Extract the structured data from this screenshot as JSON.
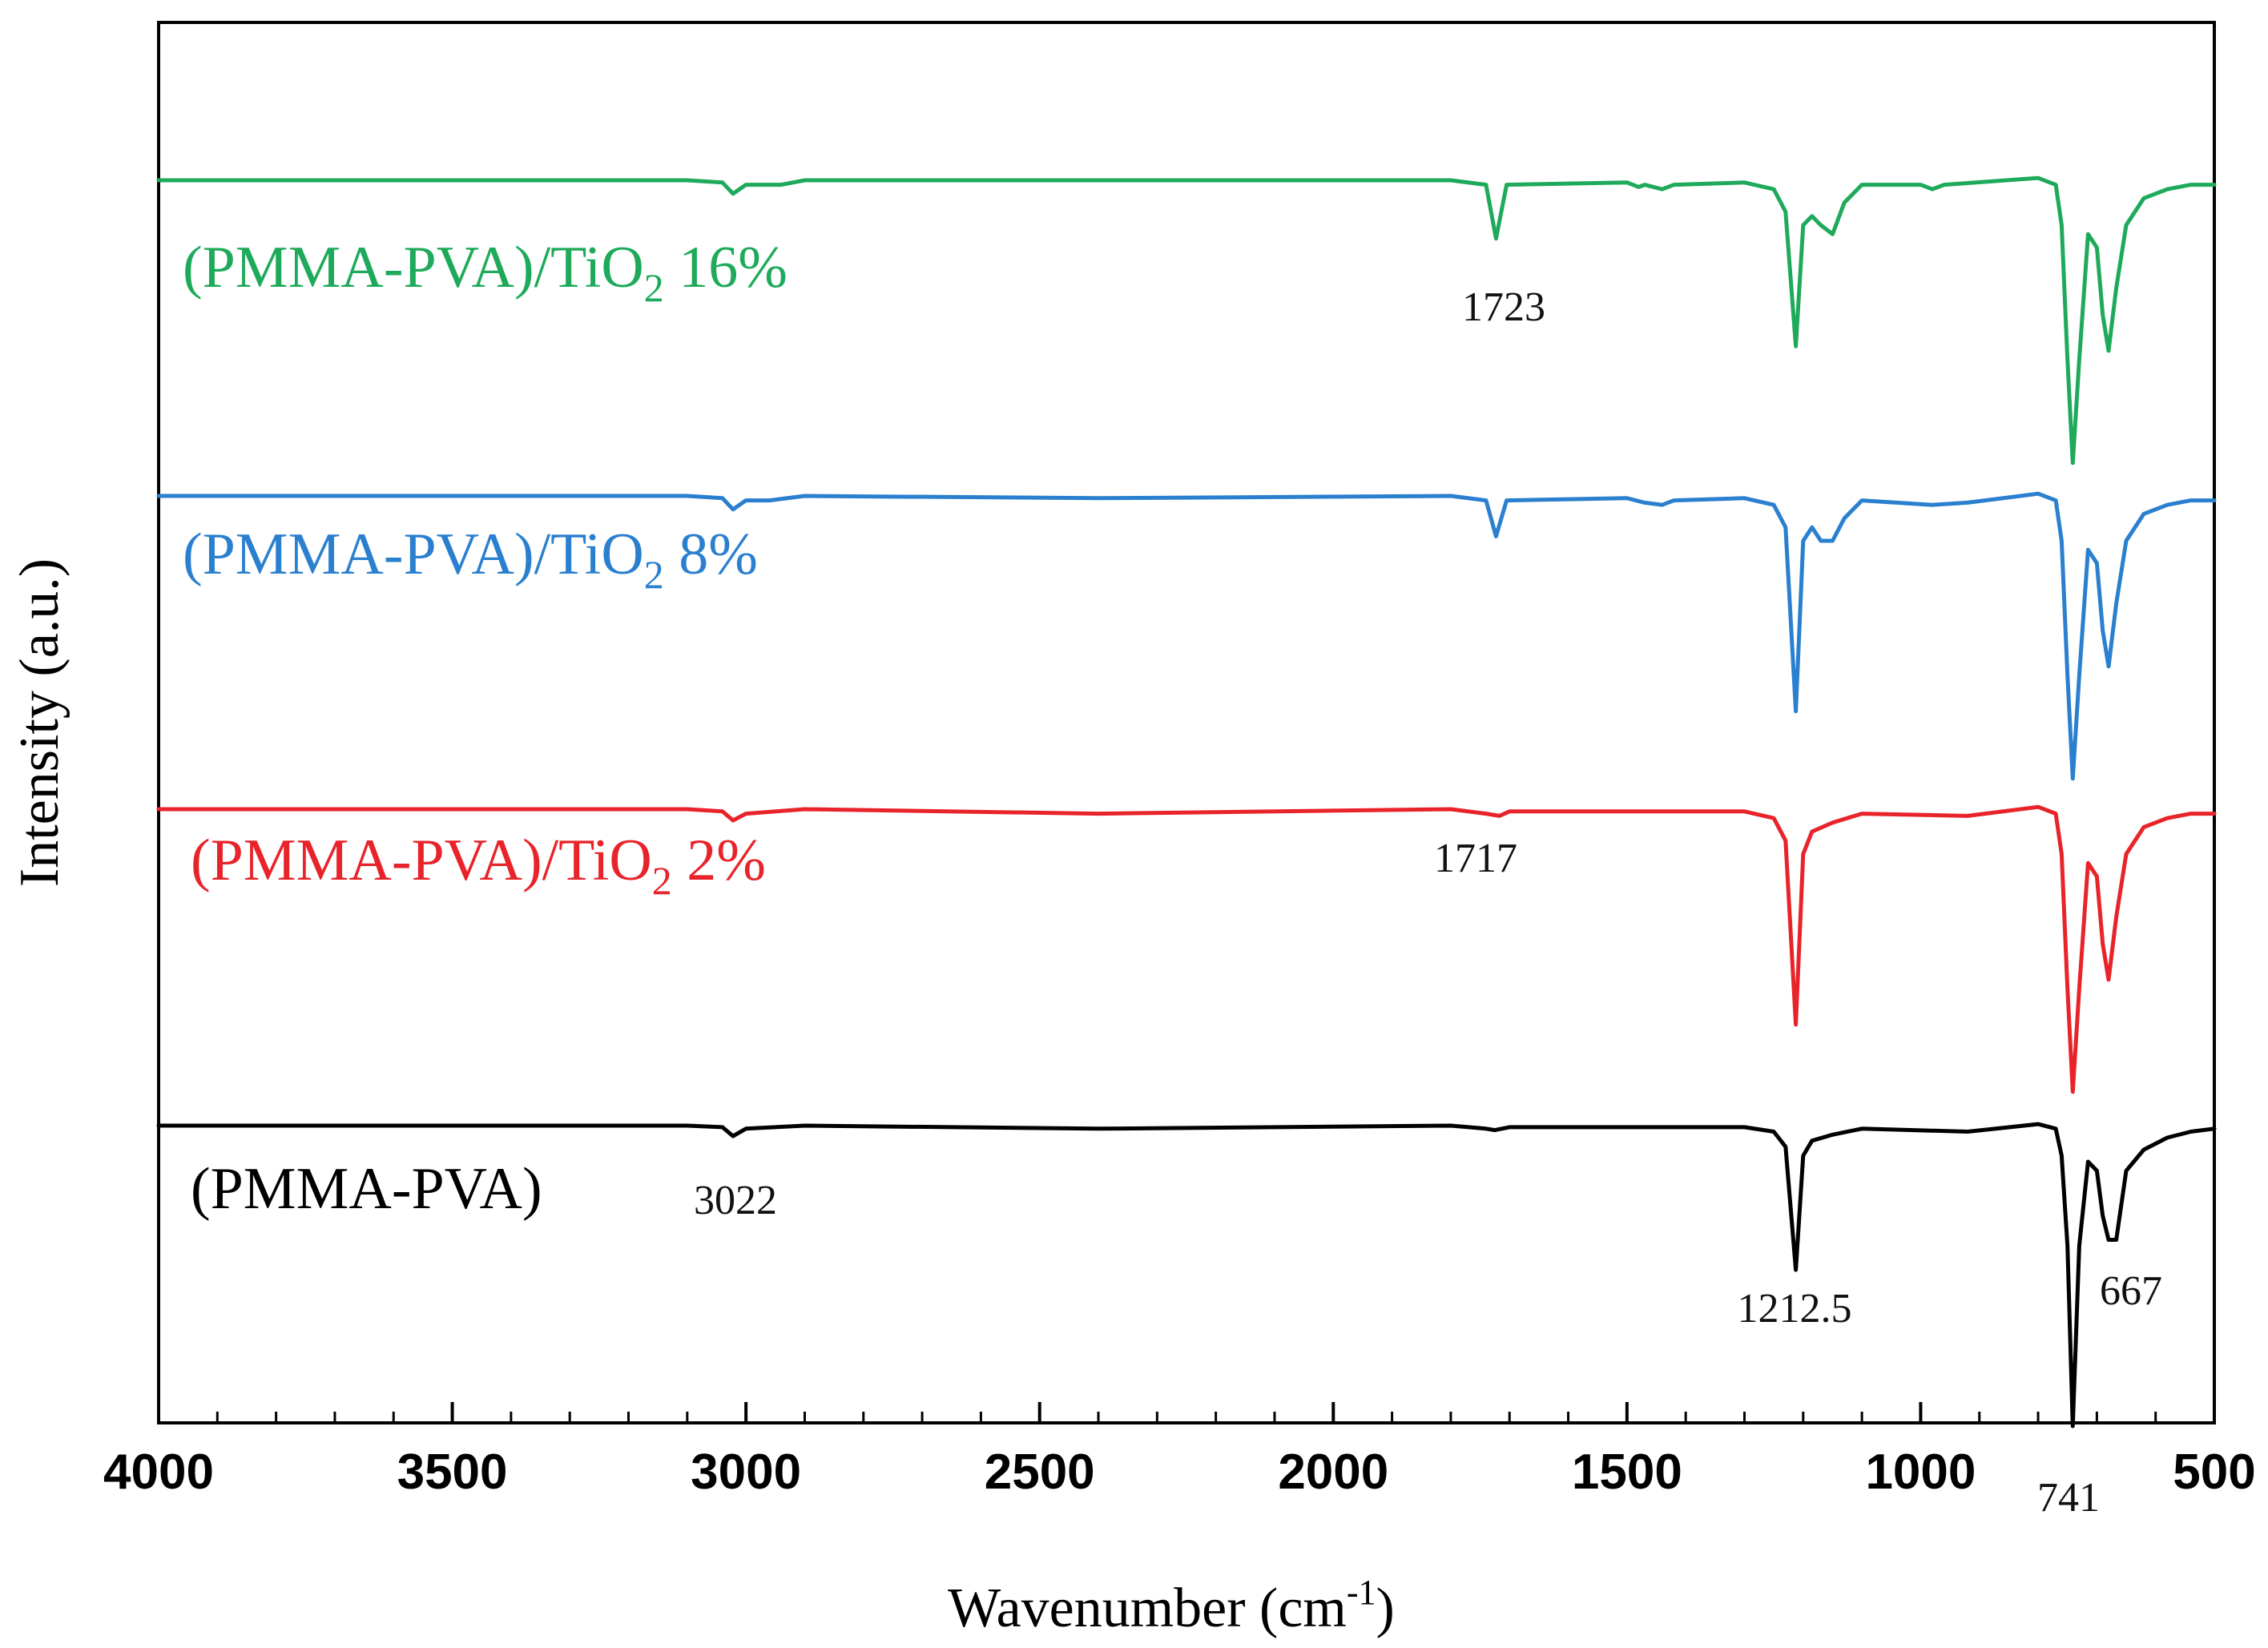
{
  "chart_data": {
    "type": "line",
    "title": "",
    "xlabel": "Wavenumber (cm",
    "xlabel_sup": "-1",
    "xlabel_close": ")",
    "ylabel": "Intensity (a.u.)",
    "xlim": [
      4000,
      500
    ],
    "x_reversed": true,
    "grid": false,
    "x_ticks": [
      4000,
      3500,
      3000,
      2500,
      2000,
      1500,
      1000,
      500
    ],
    "x_tick_labels": [
      "4000",
      "3500",
      "3000",
      "2500",
      "2000",
      "1500",
      "1000",
      "500"
    ],
    "series": [
      {
        "name": "(PMMA-PVA)/TiO2 16%",
        "label_prefix": "(PMMA-PVA)/TiO",
        "label_sub": "2",
        "label_suffix": "16%",
        "color": "#1eaa5a",
        "baseline": 1.0,
        "points": [
          [
            4000,
            1.0
          ],
          [
            3100,
            1.0
          ],
          [
            3040,
            0.995
          ],
          [
            3022,
            0.97
          ],
          [
            3000,
            0.99
          ],
          [
            2960,
            0.99
          ],
          [
            2940,
            0.99
          ],
          [
            2900,
            1.0
          ],
          [
            1800,
            1.0
          ],
          [
            1740,
            0.99
          ],
          [
            1723,
            0.87
          ],
          [
            1705,
            0.99
          ],
          [
            1500,
            0.995
          ],
          [
            1480,
            0.985
          ],
          [
            1470,
            0.99
          ],
          [
            1440,
            0.98
          ],
          [
            1420,
            0.99
          ],
          [
            1300,
            0.995
          ],
          [
            1250,
            0.98
          ],
          [
            1230,
            0.93
          ],
          [
            1212.5,
            0.63
          ],
          [
            1200,
            0.9
          ],
          [
            1185,
            0.92
          ],
          [
            1170,
            0.9
          ],
          [
            1150,
            0.88
          ],
          [
            1130,
            0.95
          ],
          [
            1100,
            0.99
          ],
          [
            1000,
            0.99
          ],
          [
            980,
            0.98
          ],
          [
            960,
            0.99
          ],
          [
            800,
            1.005
          ],
          [
            770,
            0.99
          ],
          [
            760,
            0.9
          ],
          [
            750,
            0.6
          ],
          [
            741,
            0.37
          ],
          [
            730,
            0.6
          ],
          [
            715,
            0.88
          ],
          [
            700,
            0.85
          ],
          [
            690,
            0.7
          ],
          [
            680,
            0.62
          ],
          [
            667,
            0.76
          ],
          [
            650,
            0.9
          ],
          [
            620,
            0.96
          ],
          [
            580,
            0.98
          ],
          [
            540,
            0.99
          ],
          [
            500,
            0.99
          ]
        ]
      },
      {
        "name": "(PMMA-PVA)/TiO2 8%",
        "label_prefix": "(PMMA-PVA)/TiO",
        "label_sub": "2",
        "label_suffix": "8%",
        "color": "#2a7fcf",
        "baseline": 0.0,
        "points": [
          [
            4000,
            1.0
          ],
          [
            3100,
            1.0
          ],
          [
            3040,
            0.995
          ],
          [
            3022,
            0.97
          ],
          [
            3000,
            0.99
          ],
          [
            2960,
            0.99
          ],
          [
            2900,
            1.0
          ],
          [
            2400,
            0.995
          ],
          [
            1800,
            1.0
          ],
          [
            1740,
            0.99
          ],
          [
            1723,
            0.91
          ],
          [
            1705,
            0.99
          ],
          [
            1500,
            0.995
          ],
          [
            1470,
            0.985
          ],
          [
            1440,
            0.98
          ],
          [
            1420,
            0.99
          ],
          [
            1300,
            0.995
          ],
          [
            1250,
            0.98
          ],
          [
            1230,
            0.93
          ],
          [
            1212.5,
            0.52
          ],
          [
            1200,
            0.9
          ],
          [
            1185,
            0.93
          ],
          [
            1170,
            0.9
          ],
          [
            1150,
            0.9
          ],
          [
            1130,
            0.95
          ],
          [
            1100,
            0.99
          ],
          [
            980,
            0.98
          ],
          [
            920,
            0.985
          ],
          [
            800,
            1.005
          ],
          [
            770,
            0.99
          ],
          [
            760,
            0.9
          ],
          [
            750,
            0.6
          ],
          [
            741,
            0.37
          ],
          [
            730,
            0.6
          ],
          [
            715,
            0.88
          ],
          [
            700,
            0.85
          ],
          [
            690,
            0.7
          ],
          [
            680,
            0.62
          ],
          [
            667,
            0.76
          ],
          [
            650,
            0.9
          ],
          [
            620,
            0.96
          ],
          [
            580,
            0.98
          ],
          [
            540,
            0.99
          ],
          [
            500,
            0.99
          ]
        ]
      },
      {
        "name": "(PMMA-PVA)/TiO2 2%",
        "label_prefix": "(PMMA-PVA)/TiO",
        "label_sub": "2",
        "label_suffix": "2%",
        "color": "#e8232a",
        "baseline": 0.0,
        "points": [
          [
            4000,
            1.0
          ],
          [
            3100,
            1.0
          ],
          [
            3040,
            0.995
          ],
          [
            3022,
            0.975
          ],
          [
            3000,
            0.99
          ],
          [
            2900,
            1.0
          ],
          [
            2400,
            0.99
          ],
          [
            1800,
            1.0
          ],
          [
            1740,
            0.99
          ],
          [
            1717,
            0.985
          ],
          [
            1700,
            0.995
          ],
          [
            1300,
            0.995
          ],
          [
            1250,
            0.98
          ],
          [
            1230,
            0.93
          ],
          [
            1212.5,
            0.52
          ],
          [
            1200,
            0.9
          ],
          [
            1185,
            0.95
          ],
          [
            1150,
            0.97
          ],
          [
            1100,
            0.99
          ],
          [
            920,
            0.985
          ],
          [
            800,
            1.005
          ],
          [
            770,
            0.99
          ],
          [
            760,
            0.9
          ],
          [
            750,
            0.6
          ],
          [
            741,
            0.37
          ],
          [
            730,
            0.6
          ],
          [
            715,
            0.88
          ],
          [
            700,
            0.85
          ],
          [
            690,
            0.7
          ],
          [
            680,
            0.62
          ],
          [
            667,
            0.76
          ],
          [
            650,
            0.9
          ],
          [
            620,
            0.96
          ],
          [
            580,
            0.98
          ],
          [
            540,
            0.99
          ],
          [
            500,
            0.99
          ]
        ]
      },
      {
        "name": "(PMMA-PVA)",
        "label_prefix": "(PMMA-PVA)",
        "label_sub": "",
        "label_suffix": "",
        "color": "#000000",
        "baseline": 0.0,
        "points": [
          [
            4000,
            1.0
          ],
          [
            3100,
            1.0
          ],
          [
            3040,
            0.995
          ],
          [
            3022,
            0.965
          ],
          [
            3000,
            0.99
          ],
          [
            2900,
            1.0
          ],
          [
            2400,
            0.99
          ],
          [
            1800,
            1.0
          ],
          [
            1740,
            0.99
          ],
          [
            1725,
            0.985
          ],
          [
            1700,
            0.995
          ],
          [
            1300,
            0.995
          ],
          [
            1250,
            0.98
          ],
          [
            1230,
            0.93
          ],
          [
            1212.5,
            0.52
          ],
          [
            1200,
            0.9
          ],
          [
            1185,
            0.95
          ],
          [
            1150,
            0.97
          ],
          [
            1100,
            0.99
          ],
          [
            920,
            0.98
          ],
          [
            800,
            1.005
          ],
          [
            770,
            0.99
          ],
          [
            760,
            0.9
          ],
          [
            750,
            0.6
          ],
          [
            741,
            0.0
          ],
          [
            730,
            0.6
          ],
          [
            715,
            0.88
          ],
          [
            700,
            0.85
          ],
          [
            690,
            0.7
          ],
          [
            680,
            0.62
          ],
          [
            667,
            0.62
          ],
          [
            650,
            0.85
          ],
          [
            620,
            0.92
          ],
          [
            580,
            0.96
          ],
          [
            540,
            0.98
          ],
          [
            500,
            0.99
          ]
        ]
      }
    ],
    "annotations": [
      {
        "text": "1723",
        "x": 1723,
        "series": 0
      },
      {
        "text": "1717",
        "x": 1717,
        "series": 2
      },
      {
        "text": "3022",
        "x": 3022,
        "series": 3
      },
      {
        "text": "1212.5",
        "x": 1212.5,
        "series": 3
      },
      {
        "text": "667",
        "x": 667,
        "series": 3
      },
      {
        "text": "741",
        "x": 741,
        "series": 3
      }
    ]
  }
}
